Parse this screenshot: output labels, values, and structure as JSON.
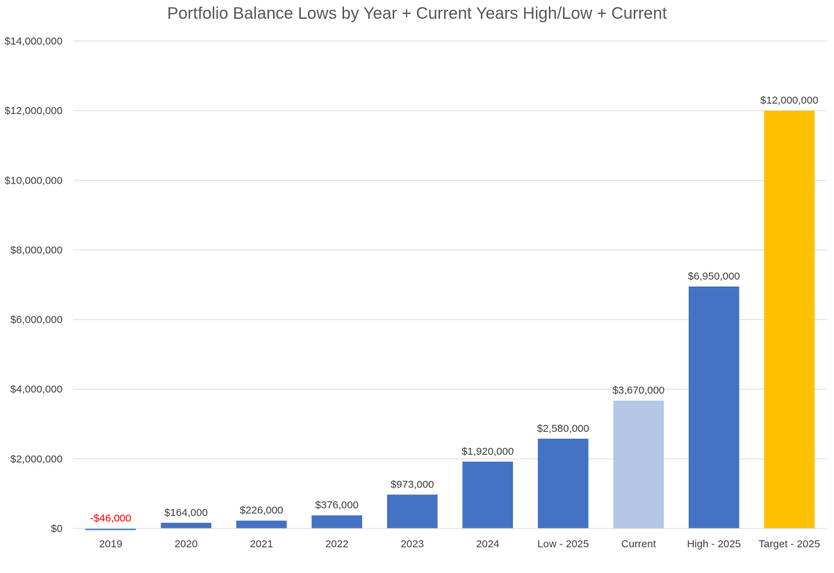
{
  "chart_data": {
    "type": "bar",
    "title": "Portfolio Balance Lows by Year + Current Years High/Low + Current",
    "xlabel": "",
    "ylabel": "",
    "categories": [
      "2019",
      "2020",
      "2021",
      "2022",
      "2023",
      "2024",
      "Low - 2025",
      "Current",
      "High - 2025",
      "Target - 2025"
    ],
    "values": [
      -46000,
      164000,
      226000,
      376000,
      973000,
      1920000,
      2580000,
      3670000,
      6950000,
      12000000
    ],
    "data_labels": [
      "-$46,000",
      "$164,000",
      "$226,000",
      "$376,000",
      "$973,000",
      "$1,920,000",
      "$2,580,000",
      "$3,670,000",
      "$6,950,000",
      "$12,000,000"
    ],
    "bar_colors": [
      "#4472C4",
      "#4472C4",
      "#4472C4",
      "#4472C4",
      "#4472C4",
      "#4472C4",
      "#4472C4",
      "#B4C7E7",
      "#4472C4",
      "#FFC000"
    ],
    "data_label_colors": [
      "#FF0000",
      "#404040",
      "#404040",
      "#404040",
      "#404040",
      "#404040",
      "#404040",
      "#404040",
      "#404040",
      "#404040"
    ],
    "ylim": [
      0,
      14000000
    ],
    "yticks": [
      0,
      2000000,
      4000000,
      6000000,
      8000000,
      10000000,
      12000000,
      14000000
    ],
    "ytick_labels": [
      "$0",
      "$2,000,000",
      "$4,000,000",
      "$6,000,000",
      "$8,000,000",
      "$10,000,000",
      "$12,000,000",
      "$14,000,000"
    ],
    "grid": true,
    "legend": "none",
    "colors": {
      "gridline": "#D9D9D9",
      "axis_text": "#404040",
      "title_text": "#595959"
    }
  }
}
